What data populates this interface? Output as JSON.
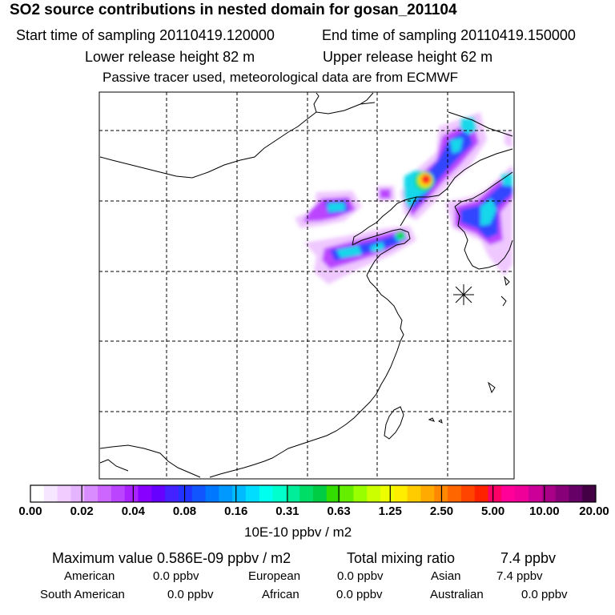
{
  "header": {
    "title": "SO2 source contributions in nested domain for gosan_201104",
    "start_label": "Start time of sampling 20110419.120000",
    "end_label": "End time of sampling 20110419.150000",
    "lower_height": "Lower release height   82 m",
    "upper_height": "Upper release height   62 m",
    "info": "Passive tracer used, meteorological data are from ECMWF"
  },
  "colorbar": {
    "colors": [
      "#ffffff",
      "#f7e6ff",
      "#f0ccff",
      "#e6b3ff",
      "#d98cff",
      "#cc66ff",
      "#bb44ff",
      "#aa22ff",
      "#8800ff",
      "#6600ff",
      "#4422ff",
      "#2233ff",
      "#1155ff",
      "#0077ff",
      "#0099ff",
      "#00bbff",
      "#00ddff",
      "#00ffee",
      "#00ffcc",
      "#00ee99",
      "#00dd66",
      "#00cc44",
      "#33dd00",
      "#66ee00",
      "#99ff00",
      "#ccff00",
      "#eeff00",
      "#ffee00",
      "#ffcc00",
      "#ffaa00",
      "#ff8800",
      "#ff6600",
      "#ff4400",
      "#ff2200",
      "#ff0066",
      "#ff0099",
      "#ee0099",
      "#cc0099",
      "#aa0088",
      "#880077",
      "#660066",
      "#440044"
    ],
    "ticks": [
      "0.00",
      "0.02",
      "0.04",
      "0.08",
      "0.16",
      "0.31",
      "0.63",
      "1.25",
      "2.50",
      "5.00",
      "10.00",
      "20.00"
    ],
    "unit": "10E-10 ppbv / m2"
  },
  "stats": {
    "max_label": "Maximum value  0.586E-09 ppbv / m2",
    "total_label": "Total mixing ratio",
    "total_value": "7.4 ppbv",
    "regions": [
      {
        "name": "American",
        "value": "0.0 ppbv"
      },
      {
        "name": "European",
        "value": "0.0 ppbv"
      },
      {
        "name": "Asian",
        "value": "7.4 ppbv"
      },
      {
        "name": "South American",
        "value": "0.0 ppbv"
      },
      {
        "name": "African",
        "value": "0.0 ppbv"
      },
      {
        "name": "Australian",
        "value": "0.0 ppbv"
      }
    ]
  },
  "map": {
    "receptor_marker": "asterisk-icon",
    "plume_colors": {
      "light": "#e9b8ff",
      "purple": "#b93cff",
      "blue": "#2a4cff",
      "cyan": "#13d7e8",
      "green": "#00d84a",
      "yellow": "#ffe400",
      "red": "#ff2020"
    }
  }
}
